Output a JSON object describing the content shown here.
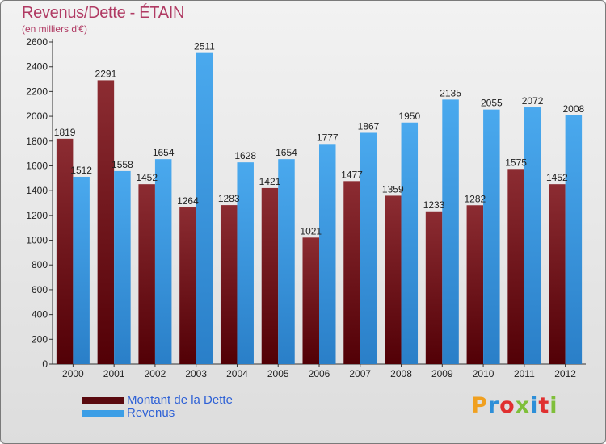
{
  "chart_data": {
    "type": "bar",
    "title": "Revenus/Dette - ÉTAIN",
    "subtitle": "(en milliers d'€)",
    "categories": [
      "2000",
      "2001",
      "2002",
      "2003",
      "2004",
      "2005",
      "2006",
      "2007",
      "2008",
      "2009",
      "2010",
      "2011",
      "2012"
    ],
    "series": [
      {
        "name": "Montant de la Dette",
        "color": "#7e1f25",
        "values": [
          1819,
          2291,
          1452,
          1264,
          1283,
          1421,
          1021,
          1477,
          1359,
          1233,
          1282,
          1575,
          1452
        ],
        "labels": [
          "1819",
          "2291",
          "1452",
          "1264",
          "1283",
          "1421",
          "1021",
          "1477",
          "1359",
          "1233",
          "1282",
          "1575",
          "1452"
        ]
      },
      {
        "name": "Revenus",
        "color": "#3c9ee6",
        "values": [
          1512,
          1558,
          1654,
          2511,
          1628,
          1654,
          1777,
          1867,
          1950,
          2135,
          2055,
          2072,
          2008
        ],
        "labels": [
          "1512",
          "1558",
          "1654",
          "2511",
          "1628",
          "1654",
          "1777",
          "1867",
          "1950",
          "2135",
          "2055",
          "2072",
          "2008"
        ]
      }
    ],
    "ylim": [
      0,
      2600
    ],
    "yticks": [
      0,
      200,
      400,
      600,
      800,
      1000,
      1200,
      1400,
      1600,
      1800,
      2000,
      2200,
      2400,
      2600
    ],
    "grid": false,
    "legend_position": "bottom-left"
  },
  "brand": {
    "name": "Proxiti",
    "letters": [
      "P",
      "r",
      "o",
      "x",
      "i",
      "t",
      "i"
    ]
  }
}
